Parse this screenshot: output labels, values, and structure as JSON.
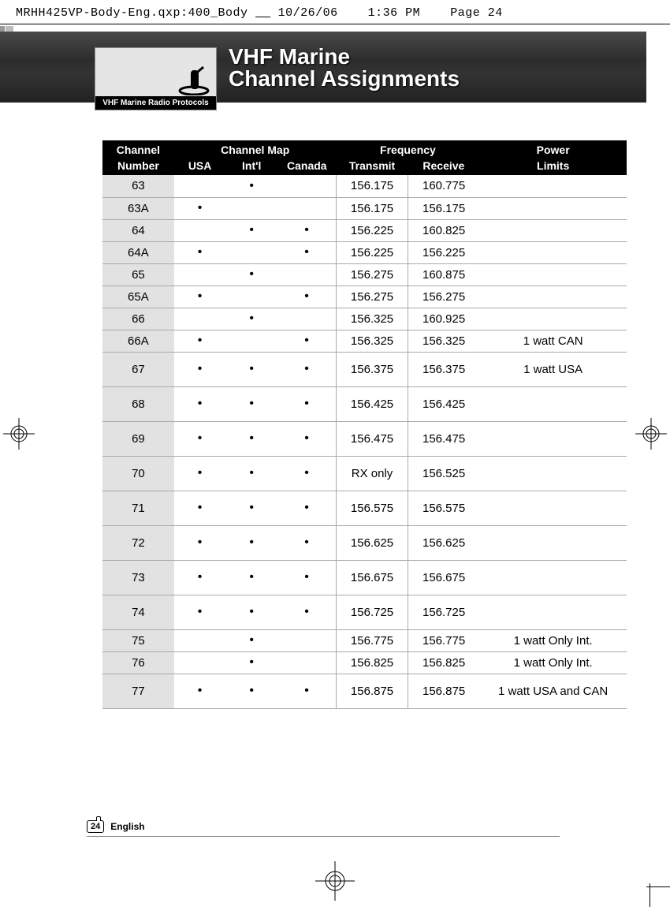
{
  "printmark": {
    "file": "MRHH425VP-Body-Eng.qxp:400_Body",
    "date": "10/26/06",
    "time": "1:36 PM",
    "page": "Page 24"
  },
  "banner": {
    "title_line1": "VHF Marine",
    "title_line2": "Channel Assignments",
    "tab_label": "VHF Marine Radio Protocols"
  },
  "table": {
    "headers": {
      "channel_number_1": "Channel",
      "channel_number_2": "Number",
      "channel_map": "Channel Map",
      "usa": "USA",
      "intl": "Int'l",
      "canada": "Canada",
      "frequency": "Frequency",
      "transmit": "Transmit",
      "receive": "Receive",
      "power_1": "Power",
      "power_2": "Limits"
    },
    "columns": [
      "channel",
      "usa",
      "intl",
      "canada",
      "transmit",
      "receive",
      "power"
    ],
    "rows": [
      {
        "channel": "63",
        "usa": false,
        "intl": true,
        "canada": false,
        "transmit": "156.175",
        "receive": "160.775",
        "power": "",
        "tall": false
      },
      {
        "channel": "63A",
        "usa": true,
        "intl": false,
        "canada": false,
        "transmit": "156.175",
        "receive": "156.175",
        "power": "",
        "tall": false
      },
      {
        "channel": "64",
        "usa": false,
        "intl": true,
        "canada": true,
        "transmit": "156.225",
        "receive": "160.825",
        "power": "",
        "tall": false
      },
      {
        "channel": "64A",
        "usa": true,
        "intl": false,
        "canada": true,
        "transmit": "156.225",
        "receive": "156.225",
        "power": "",
        "tall": false
      },
      {
        "channel": "65",
        "usa": false,
        "intl": true,
        "canada": false,
        "transmit": "156.275",
        "receive": "160.875",
        "power": "",
        "tall": false
      },
      {
        "channel": "65A",
        "usa": true,
        "intl": false,
        "canada": true,
        "transmit": "156.275",
        "receive": "156.275",
        "power": "",
        "tall": false
      },
      {
        "channel": "66",
        "usa": false,
        "intl": true,
        "canada": false,
        "transmit": "156.325",
        "receive": "160.925",
        "power": "",
        "tall": false
      },
      {
        "channel": "66A",
        "usa": true,
        "intl": false,
        "canada": true,
        "transmit": "156.325",
        "receive": "156.325",
        "power": "1 watt CAN",
        "tall": false
      },
      {
        "channel": "67",
        "usa": true,
        "intl": true,
        "canada": true,
        "transmit": "156.375",
        "receive": "156.375",
        "power": "1 watt USA",
        "tall": true
      },
      {
        "channel": "68",
        "usa": true,
        "intl": true,
        "canada": true,
        "transmit": "156.425",
        "receive": "156.425",
        "power": "",
        "tall": true
      },
      {
        "channel": "69",
        "usa": true,
        "intl": true,
        "canada": true,
        "transmit": "156.475",
        "receive": "156.475",
        "power": "",
        "tall": true
      },
      {
        "channel": "70",
        "usa": true,
        "intl": true,
        "canada": true,
        "transmit": "RX only",
        "receive": "156.525",
        "power": "",
        "tall": true
      },
      {
        "channel": "71",
        "usa": true,
        "intl": true,
        "canada": true,
        "transmit": "156.575",
        "receive": "156.575",
        "power": "",
        "tall": true
      },
      {
        "channel": "72",
        "usa": true,
        "intl": true,
        "canada": true,
        "transmit": "156.625",
        "receive": "156.625",
        "power": "",
        "tall": true
      },
      {
        "channel": "73",
        "usa": true,
        "intl": true,
        "canada": true,
        "transmit": "156.675",
        "receive": "156.675",
        "power": "",
        "tall": true
      },
      {
        "channel": "74",
        "usa": true,
        "intl": true,
        "canada": true,
        "transmit": "156.725",
        "receive": "156.725",
        "power": "",
        "tall": true
      },
      {
        "channel": "75",
        "usa": false,
        "intl": true,
        "canada": false,
        "transmit": "156.775",
        "receive": "156.775",
        "power": "1 watt Only Int.",
        "tall": false
      },
      {
        "channel": "76",
        "usa": false,
        "intl": true,
        "canada": false,
        "transmit": "156.825",
        "receive": "156.825",
        "power": "1 watt Only Int.",
        "tall": false
      },
      {
        "channel": "77",
        "usa": true,
        "intl": true,
        "canada": true,
        "transmit": "156.875",
        "receive": "156.875",
        "power": "1 watt USA and CAN",
        "tall": true
      }
    ]
  },
  "footer": {
    "page_number": "24",
    "language": "English"
  },
  "colors": {
    "header_bg": "#000000",
    "header_fg": "#ffffff",
    "ch_col_bg": "#e2e2e2",
    "rule": "#aaaaaa"
  }
}
